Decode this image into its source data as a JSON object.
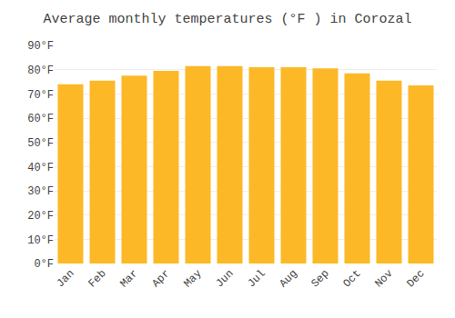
{
  "chart_data": {
    "type": "bar",
    "title": "Average monthly temperatures (°F ) in Corozal",
    "categories": [
      "Jan",
      "Feb",
      "Mar",
      "Apr",
      "May",
      "Jun",
      "Jul",
      "Aug",
      "Sep",
      "Oct",
      "Nov",
      "Dec"
    ],
    "values": [
      74,
      75.5,
      77.5,
      79.5,
      81.5,
      81.5,
      81,
      81,
      80.5,
      78.5,
      75.5,
      73.5
    ],
    "color": "#FDB827",
    "ylim": [
      0,
      90
    ],
    "yticks": [
      {
        "value": 0,
        "label": "0°F"
      },
      {
        "value": 10,
        "label": "10°F"
      },
      {
        "value": 20,
        "label": "20°F"
      },
      {
        "value": 30,
        "label": "30°F"
      },
      {
        "value": 40,
        "label": "40°F"
      },
      {
        "value": 50,
        "label": "50°F"
      },
      {
        "value": 60,
        "label": "60°F"
      },
      {
        "value": 70,
        "label": "70°F"
      },
      {
        "value": 80,
        "label": "80°F"
      },
      {
        "value": 90,
        "label": "90°F"
      }
    ],
    "grid": true
  }
}
